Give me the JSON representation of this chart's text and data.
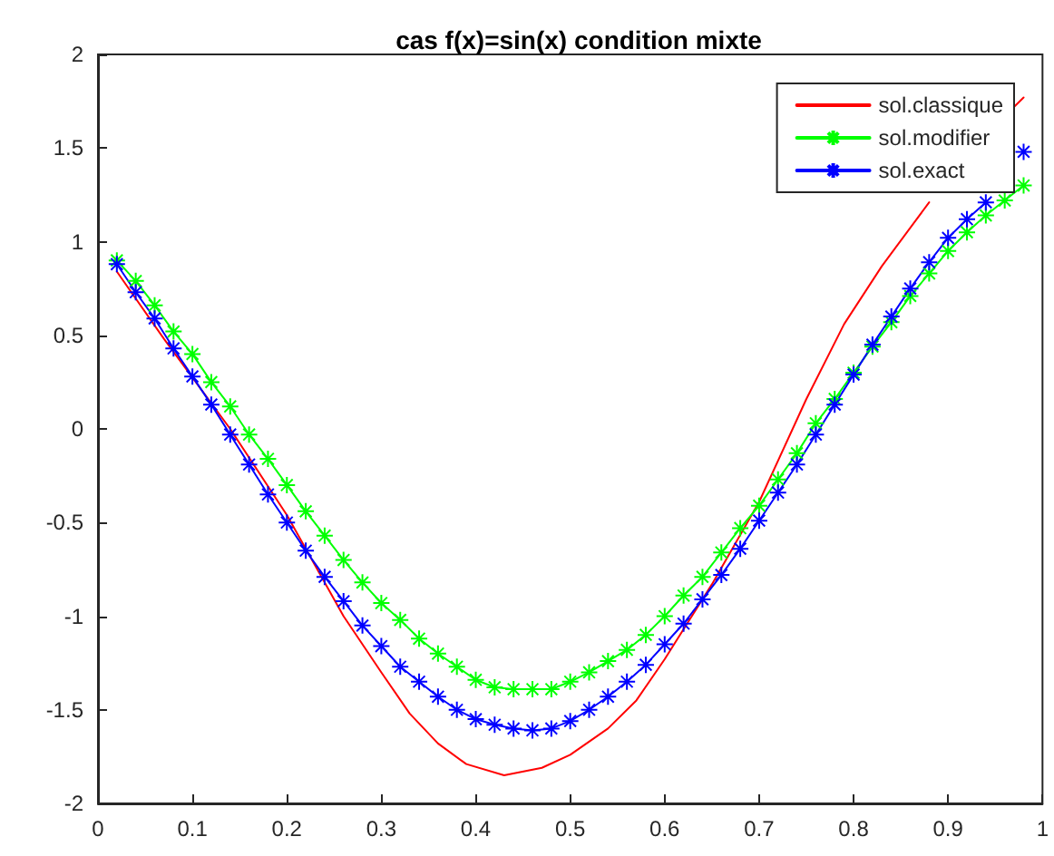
{
  "chart_data": {
    "type": "line",
    "title": "cas f(x)=sin(x) condition mixte",
    "xlim": [
      0,
      1
    ],
    "xticks": [
      0,
      0.1,
      0.2,
      0.3,
      0.4,
      0.5,
      0.6,
      0.7,
      0.8,
      0.9,
      1
    ],
    "ylim": [
      -2,
      2
    ],
    "yticks": [
      -2,
      -1.5,
      -1,
      -0.5,
      0,
      0.5,
      1,
      1.5,
      2
    ],
    "grid": false,
    "legend": "top right",
    "line_style": "solid",
    "series": [
      {
        "name": "sol.classique",
        "color": "#ff0000",
        "marker": "none",
        "x": [
          0.02,
          0.07,
          0.14,
          0.2,
          0.26,
          0.3,
          0.33,
          0.36,
          0.39,
          0.43,
          0.47,
          0.5,
          0.54,
          0.57,
          0.6,
          0.65,
          0.7,
          0.75,
          0.79,
          0.83,
          0.88,
          0.93,
          0.97,
          0.98
        ],
        "values": [
          0.84,
          0.48,
          0.0,
          -0.46,
          -1.0,
          -1.3,
          -1.52,
          -1.68,
          -1.79,
          -1.85,
          -1.81,
          -1.74,
          -1.6,
          -1.45,
          -1.23,
          -0.83,
          -0.39,
          0.16,
          0.56,
          0.87,
          1.21,
          null,
          1.72,
          1.77
        ]
      },
      {
        "name": "sol.modifier",
        "color": "#00ff00",
        "marker": "cross",
        "values": [
          0.9,
          0.79,
          0.66,
          0.52,
          0.4,
          0.25,
          0.12,
          -0.03,
          -0.16,
          -0.3,
          -0.44,
          -0.57,
          -0.7,
          -0.82,
          -0.93,
          -1.02,
          -1.12,
          -1.2,
          -1.27,
          -1.34,
          -1.38,
          -1.39,
          -1.39,
          -1.39,
          -1.35,
          -1.3,
          -1.24,
          -1.18,
          -1.1,
          -1.0,
          -0.89,
          -0.79,
          -0.66,
          -0.53,
          -0.41,
          -0.27,
          -0.13,
          0.03,
          0.16,
          0.3,
          0.44,
          0.57,
          0.71,
          0.83,
          0.95,
          1.05,
          1.14,
          1.22,
          1.3
        ]
      },
      {
        "name": "sol.exact",
        "color": "#0000ff",
        "marker": "cross",
        "values": [
          0.88,
          0.73,
          0.59,
          0.43,
          0.28,
          0.13,
          -0.03,
          -0.19,
          -0.35,
          -0.5,
          -0.65,
          -0.79,
          -0.92,
          -1.05,
          -1.16,
          -1.27,
          -1.35,
          -1.43,
          -1.5,
          -1.55,
          -1.58,
          -1.6,
          -1.61,
          -1.6,
          -1.56,
          -1.5,
          -1.43,
          -1.35,
          -1.26,
          -1.15,
          -1.04,
          -0.91,
          -0.78,
          -0.64,
          -0.49,
          -0.34,
          -0.19,
          -0.03,
          0.13,
          0.29,
          0.45,
          0.6,
          0.75,
          0.89,
          1.02,
          1.12,
          1.21,
          null,
          1.48
        ]
      }
    ],
    "x": [
      0.02,
      0.04,
      0.06,
      0.08,
      0.1,
      0.12,
      0.14,
      0.16,
      0.18,
      0.2,
      0.22,
      0.24,
      0.26,
      0.28,
      0.3,
      0.32,
      0.34,
      0.36,
      0.38,
      0.4,
      0.42,
      0.44,
      0.46,
      0.48,
      0.5,
      0.52,
      0.54,
      0.56,
      0.58,
      0.6,
      0.62,
      0.64,
      0.66,
      0.68,
      0.7,
      0.72,
      0.74,
      0.76,
      0.78,
      0.8,
      0.82,
      0.84,
      0.86,
      0.88,
      0.9,
      0.92,
      0.94,
      0.96,
      0.98
    ]
  }
}
